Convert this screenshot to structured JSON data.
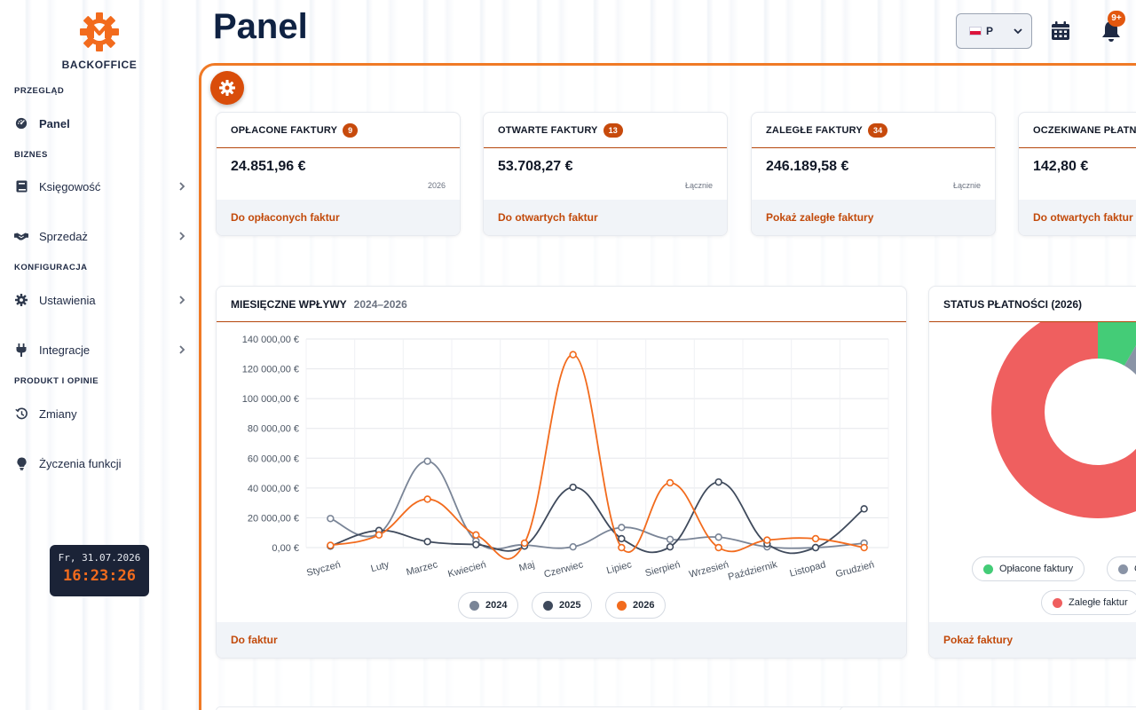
{
  "brand": {
    "name": "BACKOFFICE"
  },
  "sidebar": {
    "sections": [
      {
        "label": "PRZEGLĄD"
      },
      {
        "label": "BIZNES"
      },
      {
        "label": "KONFIGURACJA"
      },
      {
        "label": "PRODUKT I OPINIE"
      }
    ],
    "items": [
      {
        "label": "Panel",
        "icon": "dashboard-icon",
        "active": true
      },
      {
        "label": "Księgowość",
        "icon": "book-icon"
      },
      {
        "label": "Sprzedaż",
        "icon": "handshake-icon"
      },
      {
        "label": "Ustawienia",
        "icon": "gear-icon"
      },
      {
        "label": "Integracje",
        "icon": "plug-icon"
      },
      {
        "label": "Zmiany",
        "icon": "history-icon"
      },
      {
        "label": "Życzenia funkcji",
        "icon": "lightbulb-icon"
      }
    ]
  },
  "clock": {
    "date": "Fr, 31.07.2026",
    "time": "16:23:26"
  },
  "header": {
    "title": "Panel",
    "language": {
      "value": "P"
    },
    "notifications_badge": "9+"
  },
  "stats": [
    {
      "title": "OPŁACONE FAKTURY",
      "count": "9",
      "amount": "24.851,96 €",
      "period": "2026",
      "link": "Do opłaconych faktur"
    },
    {
      "title": "OTWARTE FAKTURY",
      "count": "13",
      "amount": "53.708,27 €",
      "period": "Łącznie",
      "link": "Do otwartych faktur"
    },
    {
      "title": "ZALEGŁE FAKTURY",
      "count": "34",
      "amount": "246.189,58 €",
      "period": "Łącznie",
      "link": "Pokaż zaległe faktury"
    },
    {
      "title": "OCZEKIWANE PŁATNO",
      "count": "",
      "amount": "142,80 €",
      "period": "",
      "link": "Do otwartych faktur"
    }
  ],
  "monthly_card": {
    "title": "MIESIĘCZNE WPŁYWY",
    "subtitle": "2024–2026",
    "link": "Do faktur"
  },
  "status_card": {
    "title": "STATUS PŁATNOŚCI (2026)",
    "link": "Pokaż faktury",
    "legend": [
      {
        "label": "Opłacone faktury",
        "color": "#44cc77"
      },
      {
        "label": "O",
        "color": "#8a94a6"
      },
      {
        "label": "Zaległe faktur",
        "color": "#ef5f5f"
      }
    ],
    "donut": [
      {
        "label": "Opłacone faktury",
        "value": 0.083,
        "color": "#44cc77"
      },
      {
        "label": "Otwarte faktury",
        "value": 0.05,
        "color": "#8a94a6"
      },
      {
        "label": "Zaległe faktury",
        "value": 0.867,
        "color": "#ef5f5f"
      }
    ]
  },
  "chart_data": {
    "type": "line",
    "categories": [
      "Styczeń",
      "Luty",
      "Marzec",
      "Kwiecień",
      "Maj",
      "Czerwiec",
      "Lipiec",
      "Sierpień",
      "Wrzesień",
      "Październik",
      "Listopad",
      "Grudzień"
    ],
    "ylim": [
      0,
      140000
    ],
    "yticks": [
      "0,00 €",
      "20 000,00 €",
      "40 000,00 €",
      "60 000,00 €",
      "80 000,00 €",
      "100 000,00 €",
      "120 000,00 €",
      "140 000,00 €"
    ],
    "grid": true,
    "legend_position": "bottom",
    "series": [
      {
        "name": "2024",
        "color": "#7a8597",
        "values": [
          19500,
          9500,
          58000,
          4500,
          1800,
          500,
          13500,
          5500,
          7000,
          500,
          0,
          3000
        ]
      },
      {
        "name": "2025",
        "color": "#3f4a5c",
        "values": [
          1000,
          11500,
          4000,
          2000,
          1000,
          40500,
          6000,
          500,
          44000,
          2500,
          0,
          26000
        ]
      },
      {
        "name": "2026",
        "color": "#f26b1d",
        "values": [
          1500,
          8500,
          32500,
          8500,
          3000,
          129500,
          0,
          43500,
          0,
          5000,
          6000,
          0
        ]
      }
    ]
  }
}
